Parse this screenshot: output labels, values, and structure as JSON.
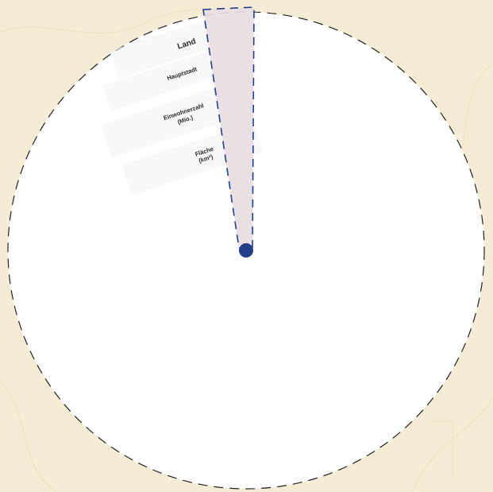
{
  "wheel": {
    "center_dot_color": "#233e8b",
    "pointer_fill": "#e8dde2",
    "pointer_stroke": "#233e8b",
    "disc_fill": "#ffffff",
    "outline_color": "#222222",
    "background_color": "#f6ecd5",
    "field_labels": {
      "country": "Land",
      "capital": "Hauptstadt",
      "population_line1": "Einwohnerzahl",
      "population_line2": "(Mio.)",
      "area_line1": "Fläche",
      "area_line2": "(km²)"
    }
  }
}
